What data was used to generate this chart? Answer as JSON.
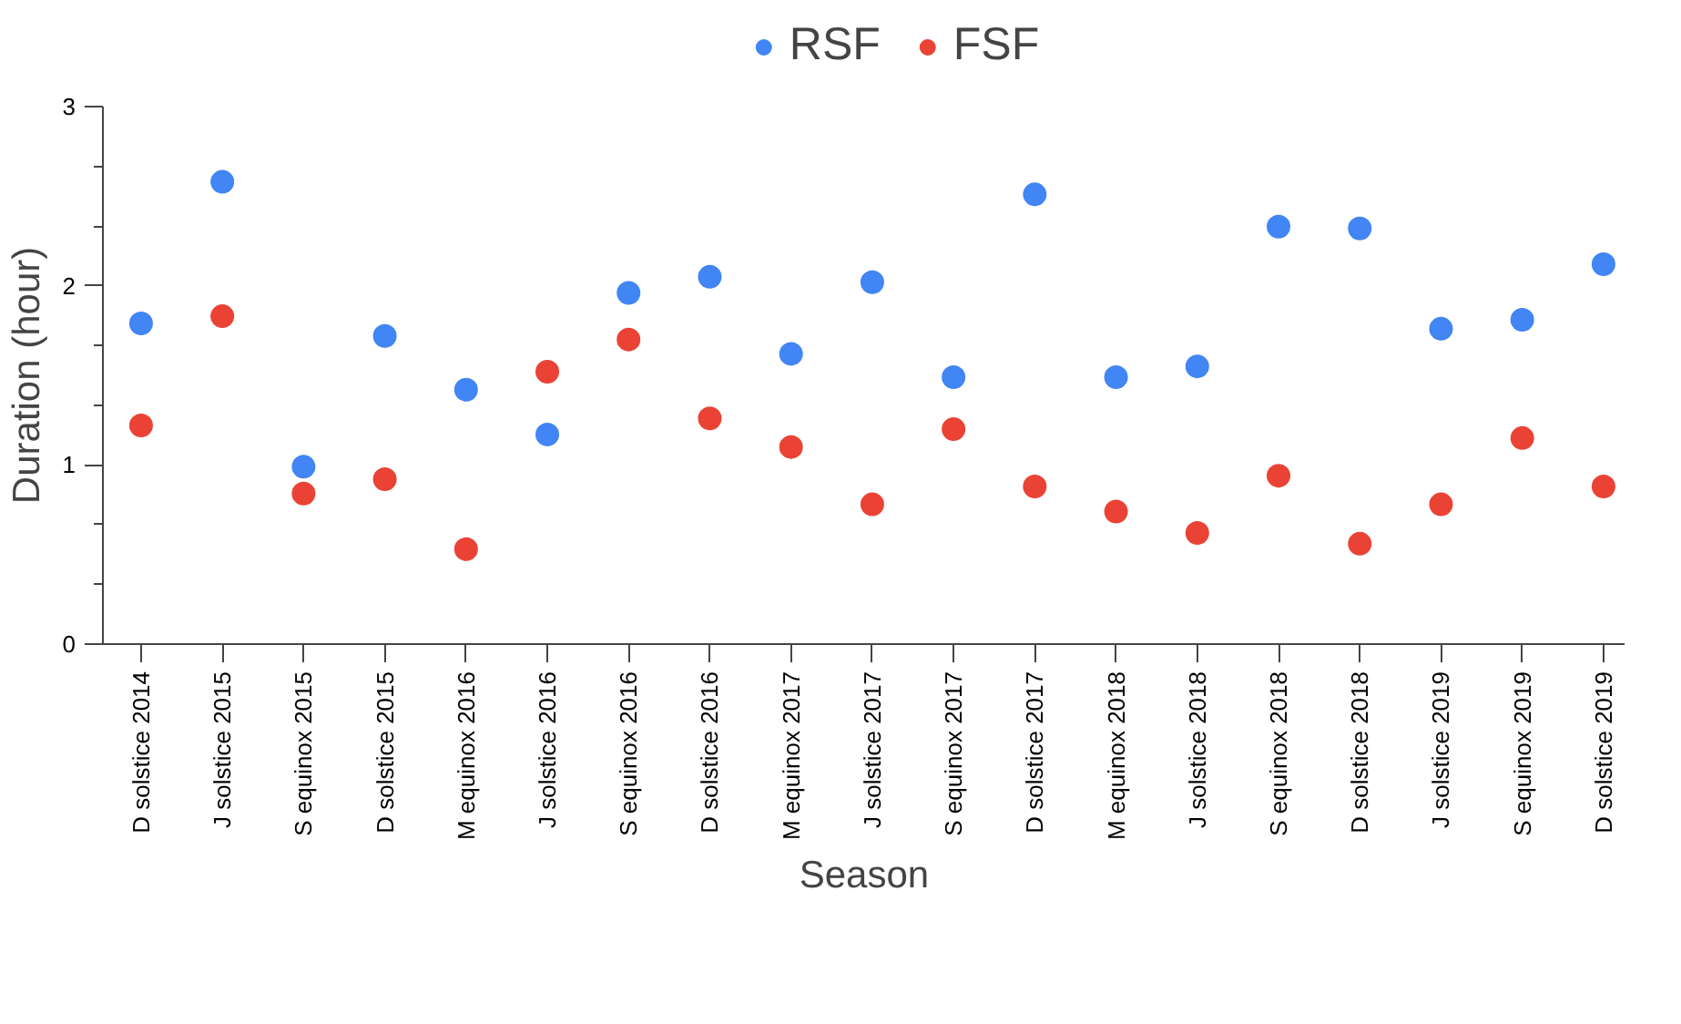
{
  "chart_data": {
    "type": "scatter",
    "xlabel": "Season",
    "ylabel": "Duration (hour)",
    "categories": [
      "D solstice 2014",
      "J solstice 2015",
      "S equinox 2015",
      "D solstice 2015",
      "M equinox 2016",
      "J solstice 2016",
      "S equinox 2016",
      "D solstice 2016",
      "M equinox 2017",
      "J solstice 2017",
      "S equinox 2017",
      "D solstice 2017",
      "M equinox 2018",
      "J solstice 2018",
      "S equinox 2018",
      "D solstice 2018",
      "J solstice 2019",
      "S equinox 2019",
      "D solstice 2019"
    ],
    "series": [
      {
        "name": "RSF",
        "color": "#4285f4",
        "values": [
          1.79,
          2.58,
          0.99,
          1.72,
          1.42,
          1.17,
          1.96,
          2.05,
          1.62,
          2.02,
          1.49,
          2.51,
          1.49,
          1.55,
          2.33,
          2.32,
          1.76,
          1.81,
          2.12
        ]
      },
      {
        "name": "FSF",
        "color": "#ea4335",
        "values": [
          1.22,
          1.83,
          0.84,
          0.92,
          0.53,
          1.52,
          1.7,
          1.26,
          1.1,
          0.78,
          1.2,
          0.88,
          0.74,
          0.62,
          0.94,
          0.56,
          0.78,
          1.15,
          0.88
        ]
      }
    ],
    "ylim": [
      0,
      3
    ],
    "yticks": [
      0,
      {
        "value": 0.333,
        "label": null
      },
      {
        "value": 0.667,
        "label": null
      },
      1,
      {
        "value": 1.333,
        "label": null
      },
      {
        "value": 1.667,
        "label": null
      },
      2,
      {
        "value": 2.333,
        "label": null
      },
      {
        "value": 2.667,
        "label": null
      },
      3
    ],
    "marker": "circle",
    "legend": "top",
    "grid": false
  }
}
